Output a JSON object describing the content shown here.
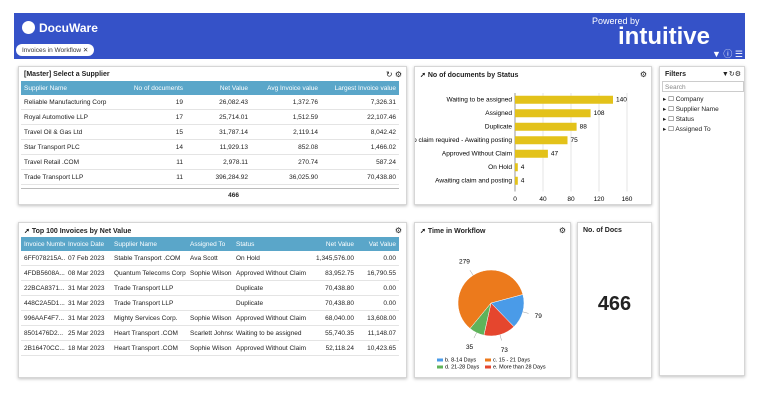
{
  "header": {
    "logo": "DocuWare",
    "tab": "Invoices in Workflow",
    "powered": "Powered by",
    "brand": "intuitive"
  },
  "supplier_table": {
    "title": "[Master] Select a Supplier",
    "columns": [
      "Supplier Name",
      "No of documents",
      "Net Value",
      "Avg Invoice value",
      "Largest Invoice value"
    ],
    "rows": [
      [
        "Reliable Manufacturing Corp",
        "19",
        "26,082.43",
        "1,372.76",
        "7,326.31"
      ],
      [
        "Royal Automotive LLP",
        "17",
        "25,714.01",
        "1,512.59",
        "22,107.46"
      ],
      [
        "Travel Oil & Gas Ltd",
        "15",
        "31,787.14",
        "2,119.14",
        "8,042.42"
      ],
      [
        "Star Transport PLC",
        "14",
        "11,929.13",
        "852.08",
        "1,466.02"
      ],
      [
        "Travel Retail .COM",
        "11",
        "2,978.11",
        "270.74",
        "587.24"
      ],
      [
        "Trade Transport LLP",
        "11",
        "396,284.92",
        "36,025.90",
        "70,438.80"
      ]
    ],
    "total": "466"
  },
  "invoice_table": {
    "title": "Top 100 Invoices by Net Value",
    "columns": [
      "Invoice Number",
      "Invoice Date",
      "Supplier Name",
      "Assigned To",
      "Status",
      "Net Value",
      "Vat Value"
    ],
    "rows": [
      [
        "6FF078215A...",
        "07 Feb 2023",
        "Stable Transport .COM",
        "Ava Scott",
        "On Hold",
        "1,345,576.00",
        "0.00"
      ],
      [
        "4FDB5608A...",
        "08 Mar 2023",
        "Quantum Telecoms Corp",
        "Sophie Wilson",
        "Approved Without Claim",
        "83,952.75",
        "16,790.55"
      ],
      [
        "22BCA8371...",
        "31 Mar 2023",
        "Trade Transport LLP",
        null,
        "Duplicate",
        "70,438.80",
        "0.00"
      ],
      [
        "448C2A5D1...",
        "31 Mar 2023",
        "Trade Transport LLP",
        null,
        "Duplicate",
        "70,438.80",
        "0.00"
      ],
      [
        "996AAF4F7...",
        "31 Mar 2023",
        "Mighty Services Corp.",
        "Sophie Wilson",
        "Approved Without Claim",
        "68,040.00",
        "13,608.00"
      ],
      [
        "8501476D2...",
        "25 Mar 2023",
        "Heart Transport .COM",
        "Scarlett Johnson",
        "Waiting to be assigned",
        "55,740.35",
        "11,148.07"
      ],
      [
        "2B16470CC...",
        "18 Mar 2023",
        "Heart Transport .COM",
        "Sophie Wilson",
        "Approved Without Claim",
        "52,118.24",
        "10,423.65"
      ]
    ]
  },
  "chart_data": [
    {
      "type": "bar",
      "title": "No of documents by Status",
      "categories": [
        "Waiting to be assigned",
        "Assigned",
        "Duplicate",
        "No claim required - Awaiting posting",
        "Approved Without Claim",
        "On Hold",
        "Awaiting claim and posting"
      ],
      "values": [
        140,
        108,
        88,
        75,
        47,
        4,
        4
      ],
      "color": "#e3c21a",
      "xlim": [
        0,
        160
      ],
      "xticks": [
        0,
        40,
        80,
        120,
        160
      ],
      "grid": true
    },
    {
      "type": "pie",
      "title": "Time in Workflow",
      "categories": [
        "b. 8-14 Days",
        "c. 15 - 21 Days",
        "d. 21-28 Days",
        "e. More than 28 Days"
      ],
      "values": [
        79,
        279,
        35,
        73
      ],
      "colors": [
        "#4a9be8",
        "#ec7a1c",
        "#5fb35a",
        "#e5462e"
      ]
    }
  ],
  "docs_card": {
    "title": "No. of Docs",
    "value": "466"
  },
  "filters": {
    "title": "Filters",
    "search": "Search",
    "items": [
      "Company",
      "Supplier Name",
      "Status",
      "Assigned To"
    ]
  }
}
